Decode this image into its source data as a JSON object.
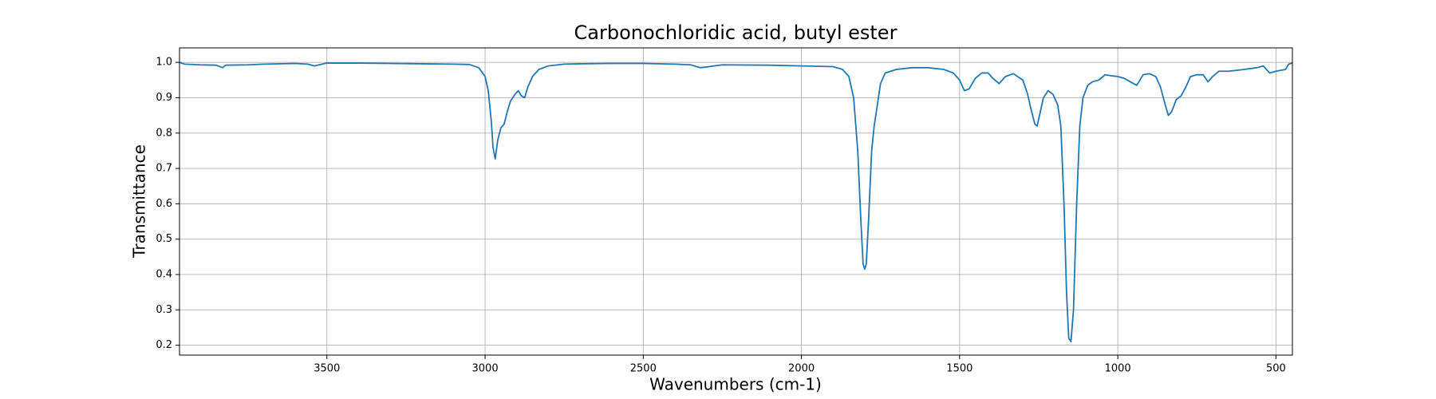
{
  "chart_data": {
    "type": "line",
    "title": "Carbonochloridic acid, butyl ester",
    "x_label": "Wavenumbers (cm-1)",
    "y_label": "Transmittance",
    "color": "#1f77b4",
    "grid": true,
    "xlim": [
      3966,
      448
    ],
    "ylim": [
      0.172,
      1.041
    ],
    "xticks": [
      3500,
      3000,
      2500,
      2000,
      1500,
      1000,
      500
    ],
    "yticks": [
      0.2,
      0.3,
      0.4,
      0.5,
      0.6,
      0.7,
      0.8,
      0.9,
      {
        "value": 1,
        "label": "1.0"
      }
    ],
    "x": [
      3966,
      3950,
      3900,
      3850,
      3830,
      3820,
      3750,
      3700,
      3600,
      3560,
      3540,
      3500,
      3400,
      3300,
      3200,
      3100,
      3050,
      3020,
      3000,
      2990,
      2980,
      2975,
      2968,
      2960,
      2950,
      2940,
      2930,
      2920,
      2905,
      2895,
      2885,
      2875,
      2865,
      2850,
      2830,
      2800,
      2750,
      2700,
      2600,
      2500,
      2400,
      2350,
      2320,
      2300,
      2250,
      2100,
      2000,
      1900,
      1870,
      1850,
      1835,
      1822,
      1812,
      1805,
      1800,
      1795,
      1788,
      1778,
      1770,
      1760,
      1750,
      1735,
      1700,
      1650,
      1600,
      1550,
      1520,
      1500,
      1485,
      1470,
      1450,
      1430,
      1410,
      1395,
      1375,
      1355,
      1330,
      1300,
      1285,
      1275,
      1262,
      1255,
      1245,
      1235,
      1220,
      1205,
      1190,
      1180,
      1170,
      1162,
      1155,
      1148,
      1140,
      1130,
      1120,
      1110,
      1095,
      1080,
      1060,
      1040,
      1020,
      1000,
      980,
      960,
      940,
      920,
      900,
      880,
      865,
      850,
      840,
      830,
      815,
      800,
      785,
      770,
      750,
      730,
      715,
      700,
      680,
      650,
      600,
      560,
      540,
      520,
      500,
      470,
      460,
      448
    ],
    "values": [
      1.0,
      0.995,
      0.993,
      0.992,
      0.985,
      0.992,
      0.993,
      0.995,
      0.997,
      0.995,
      0.99,
      0.998,
      0.998,
      0.997,
      0.996,
      0.995,
      0.994,
      0.985,
      0.96,
      0.92,
      0.83,
      0.76,
      0.727,
      0.78,
      0.815,
      0.825,
      0.86,
      0.89,
      0.91,
      0.92,
      0.905,
      0.9,
      0.93,
      0.96,
      0.98,
      0.99,
      0.995,
      0.996,
      0.997,
      0.997,
      0.995,
      0.993,
      0.985,
      0.987,
      0.993,
      0.992,
      0.99,
      0.988,
      0.98,
      0.96,
      0.9,
      0.75,
      0.55,
      0.43,
      0.415,
      0.43,
      0.55,
      0.75,
      0.82,
      0.88,
      0.94,
      0.97,
      0.98,
      0.985,
      0.985,
      0.98,
      0.97,
      0.95,
      0.92,
      0.925,
      0.955,
      0.97,
      0.97,
      0.955,
      0.94,
      0.96,
      0.968,
      0.95,
      0.91,
      0.87,
      0.825,
      0.82,
      0.86,
      0.9,
      0.92,
      0.91,
      0.88,
      0.82,
      0.6,
      0.35,
      0.22,
      0.21,
      0.3,
      0.6,
      0.82,
      0.9,
      0.935,
      0.945,
      0.95,
      0.965,
      0.962,
      0.96,
      0.955,
      0.945,
      0.935,
      0.965,
      0.968,
      0.96,
      0.93,
      0.88,
      0.85,
      0.86,
      0.895,
      0.905,
      0.93,
      0.96,
      0.965,
      0.965,
      0.945,
      0.96,
      0.975,
      0.975,
      0.98,
      0.985,
      0.99,
      0.97,
      0.975,
      0.98,
      0.995,
      0.998
    ]
  }
}
